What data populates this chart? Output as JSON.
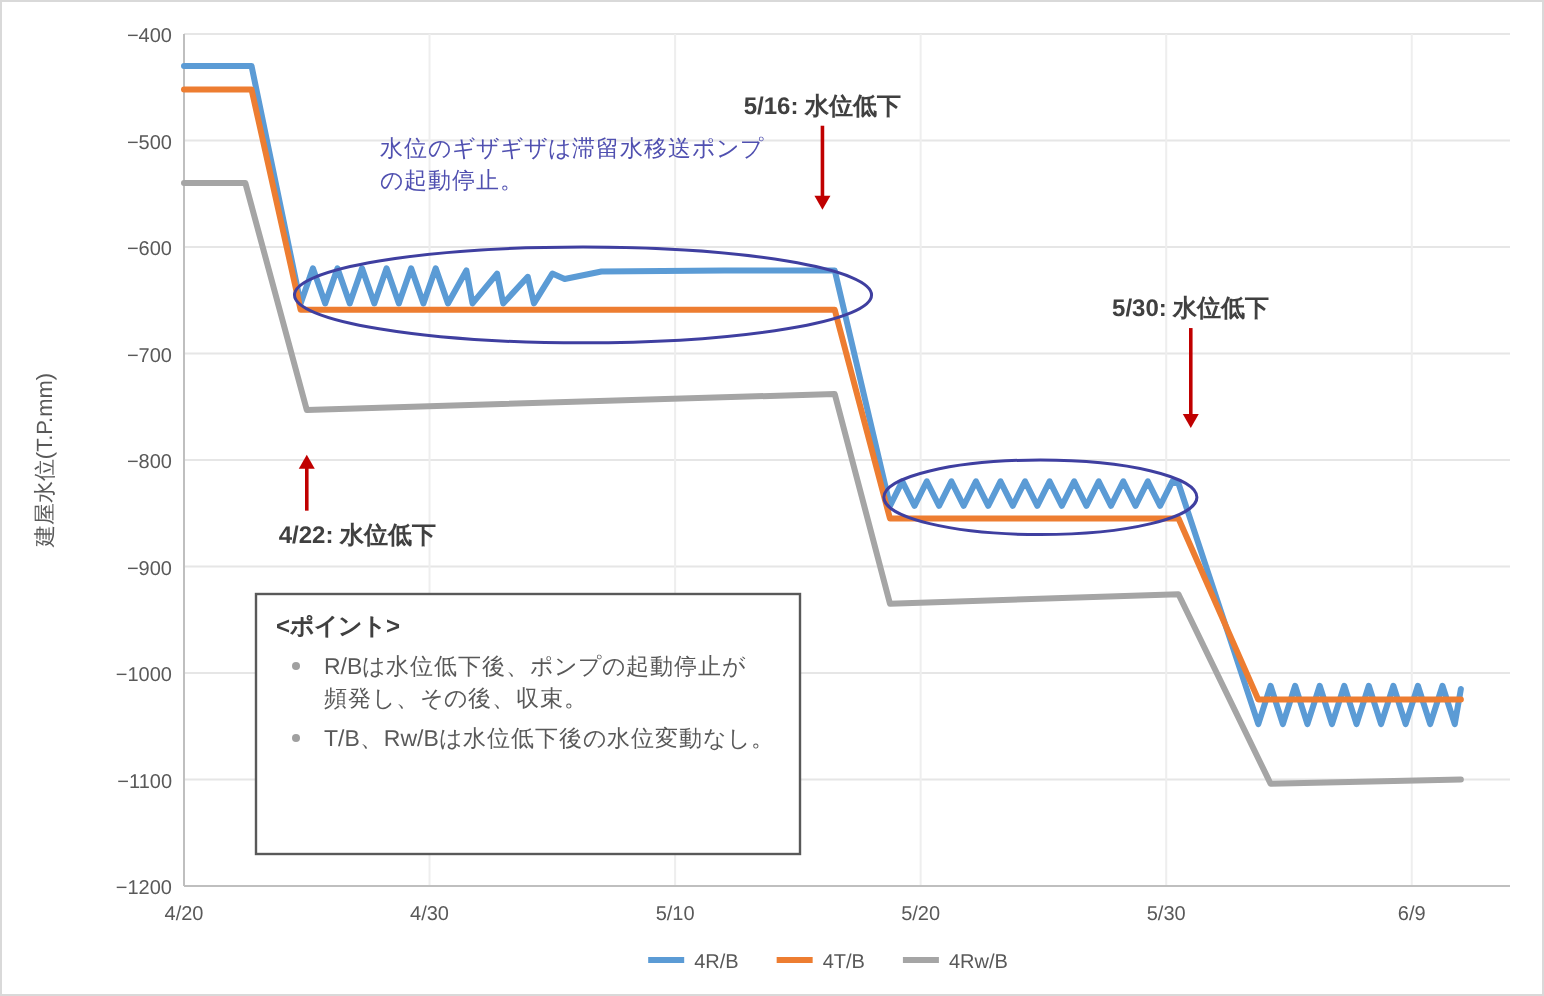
{
  "chart_data": {
    "type": "line",
    "ylabel": "建屋水位(T.P.mm)",
    "xlim": [
      "--04-20",
      "--06-13"
    ],
    "xticks": [
      {
        "value": "--04-20",
        "label": "4/20"
      },
      {
        "value": "--04-30",
        "label": "4/30"
      },
      {
        "value": "--05-10",
        "label": "5/10"
      },
      {
        "value": "--05-20",
        "label": "5/20"
      },
      {
        "value": "--05-30",
        "label": "5/30"
      },
      {
        "value": "--06-09",
        "label": "6/9"
      }
    ],
    "ylim": [
      -1200,
      -400
    ],
    "yticks": [
      -400,
      -500,
      -600,
      -700,
      -800,
      -900,
      -1000,
      -1100,
      -1200
    ],
    "grid": true,
    "legend": "bottom",
    "line_style": "solid",
    "series": [
      {
        "name": "4R/B",
        "color": "#5b9bd5",
        "x": [
          "--04-20",
          "--04-22T18:00",
          "--04-24T18:00",
          "--04-25T06:00",
          "--04-25T18:00",
          "--04-26T06:00",
          "--04-26T18:00",
          "--04-27T06:00",
          "--04-27T18:00",
          "--04-28T06:00",
          "--04-28T18:00",
          "--04-29T06:00",
          "--04-29T18:00",
          "--04-30T06:00",
          "--04-30T18:00",
          "--05-01T12:00",
          "--05-01T18:00",
          "--05-02T18:00",
          "--05-03T00:00",
          "--05-04T00:00",
          "--05-04T06:00",
          "--05-05T00:00",
          "--05-05T12:00",
          "--05-07T00:00",
          "--05-12T00:00",
          "--05-16T12:00",
          "--05-18T18:00",
          "--05-19T06:00",
          "--05-19T18:00",
          "--05-20T06:00",
          "--05-20T18:00",
          "--05-21T06:00",
          "--05-21T18:00",
          "--05-22T06:00",
          "--05-22T18:00",
          "--05-23T06:00",
          "--05-23T18:00",
          "--05-24T06:00",
          "--05-24T18:00",
          "--05-25T06:00",
          "--05-25T18:00",
          "--05-26T06:00",
          "--05-26T18:00",
          "--05-27T06:00",
          "--05-27T18:00",
          "--05-28T06:00",
          "--05-28T18:00",
          "--05-29T06:00",
          "--05-29T18:00",
          "--05-30T06:00",
          "--05-30T12:00",
          "--06-02T18:00",
          "--06-03T06:00",
          "--06-03T18:00",
          "--06-04T06:00",
          "--06-04T18:00",
          "--06-05T06:00",
          "--06-05T18:00",
          "--06-06T06:00",
          "--06-06T18:00",
          "--06-07T06:00",
          "--06-07T18:00",
          "--06-08T06:00",
          "--06-08T18:00",
          "--06-09T06:00",
          "--06-09T18:00",
          "--06-10T06:00",
          "--06-10T18:00",
          "--06-11T00:00"
        ],
        "values": [
          -430,
          -430,
          -653,
          -620,
          -653,
          -620,
          -653,
          -620,
          -653,
          -620,
          -653,
          -620,
          -653,
          -620,
          -653,
          -622,
          -653,
          -625,
          -653,
          -628,
          -653,
          -625,
          -630,
          -623,
          -622,
          -622,
          -843,
          -820,
          -843,
          -820,
          -843,
          -820,
          -843,
          -820,
          -843,
          -820,
          -843,
          -820,
          -843,
          -820,
          -843,
          -820,
          -843,
          -820,
          -843,
          -820,
          -843,
          -820,
          -843,
          -820,
          -822,
          -1048,
          -1012,
          -1048,
          -1012,
          -1048,
          -1012,
          -1048,
          -1012,
          -1048,
          -1012,
          -1048,
          -1012,
          -1048,
          -1012,
          -1048,
          -1012,
          -1048,
          -1015
        ]
      },
      {
        "name": "4T/B",
        "color": "#ed7d31",
        "x": [
          "--04-20",
          "--04-22T18:00",
          "--04-24T18:00",
          "--05-16T12:00",
          "--05-18T18:00",
          "--05-30T12:00",
          "--06-02T18:00",
          "--06-11T00:00"
        ],
        "values": [
          -452,
          -452,
          -659,
          -659,
          -855,
          -855,
          -1025,
          -1025
        ]
      },
      {
        "name": "4Rw/B",
        "color": "#a5a5a5",
        "x": [
          "--04-20",
          "--04-22T12:00",
          "--04-25T00:00",
          "--05-16T12:00",
          "--05-18T18:00",
          "--05-30T12:00",
          "--06-03T06:00",
          "--06-11T00:00"
        ],
        "values": [
          -540,
          -540,
          -753,
          -738,
          -935,
          -926,
          -1104,
          -1100
        ]
      }
    ],
    "annotations": [
      "4/22: 水位低下",
      "5/16: 水位低下",
      "5/30: 水位低下",
      "水位のギザギザは滞留水移送ポンプの起動停止。",
      "<ポイント>",
      "R/Bは水位低下後、ポンプの起動停止が頻発し、その後、収束。",
      "T/B、Rw/Bは水位低下後の水位変動なし。"
    ]
  }
}
